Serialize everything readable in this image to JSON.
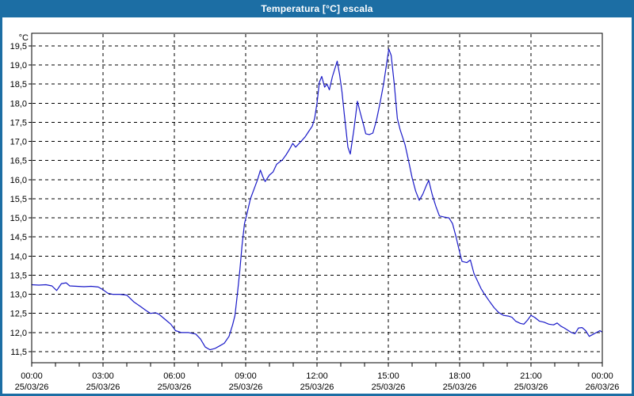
{
  "window": {
    "title": "Temperatura [°C] escala"
  },
  "colors": {
    "titlebar": "#1C6EA4",
    "window_border": "#1C6EA4",
    "plot_border": "#000000",
    "grid": "#000000",
    "line": "#1A1AC8",
    "text": "#000000",
    "background": "#FFFFFF"
  },
  "chart_data": {
    "type": "line",
    "title": "Temperatura [°C] escala",
    "y_unit_label": "°C",
    "ylabel_decimal_separator": ",",
    "grid": "dashed",
    "legend_position": "none",
    "xlim_hours": [
      0,
      24
    ],
    "ylim": [
      11.21,
      19.83
    ],
    "y_ticks": {
      "min": 11.5,
      "max": 19.5,
      "step": 0.5
    },
    "x_minor_tick_every_h": 1,
    "x_ticks": [
      {
        "h": 0,
        "time": "00:00",
        "date": "25/03/26"
      },
      {
        "h": 3,
        "time": "03:00",
        "date": "25/03/26"
      },
      {
        "h": 6,
        "time": "06:00",
        "date": "25/03/26"
      },
      {
        "h": 9,
        "time": "09:00",
        "date": "25/03/26"
      },
      {
        "h": 12,
        "time": "12:00",
        "date": "25/03/26"
      },
      {
        "h": 15,
        "time": "15:00",
        "date": "25/03/26"
      },
      {
        "h": 18,
        "time": "18:00",
        "date": "25/03/26"
      },
      {
        "h": 21,
        "time": "21:00",
        "date": "25/03/26"
      },
      {
        "h": 24,
        "time": "00:00",
        "date": "26/03/26"
      }
    ],
    "series": [
      {
        "name": "Temperatura",
        "color": "#1A1AC8",
        "points_time_h_temp_c": [
          [
            0.0,
            13.25
          ],
          [
            0.3,
            13.24
          ],
          [
            0.6,
            13.25
          ],
          [
            0.85,
            13.22
          ],
          [
            1.05,
            13.1
          ],
          [
            1.25,
            13.28
          ],
          [
            1.45,
            13.3
          ],
          [
            1.6,
            13.22
          ],
          [
            1.9,
            13.21
          ],
          [
            2.2,
            13.2
          ],
          [
            2.5,
            13.21
          ],
          [
            2.8,
            13.19
          ],
          [
            3.0,
            13.12
          ],
          [
            3.2,
            13.03
          ],
          [
            3.4,
            13.0
          ],
          [
            3.7,
            13.0
          ],
          [
            4.0,
            12.98
          ],
          [
            4.3,
            12.8
          ],
          [
            4.6,
            12.67
          ],
          [
            4.8,
            12.58
          ],
          [
            5.0,
            12.5
          ],
          [
            5.2,
            12.52
          ],
          [
            5.35,
            12.48
          ],
          [
            5.6,
            12.35
          ],
          [
            5.85,
            12.22
          ],
          [
            6.05,
            12.05
          ],
          [
            6.3,
            12.0
          ],
          [
            6.6,
            12.0
          ],
          [
            6.9,
            11.96
          ],
          [
            7.1,
            11.83
          ],
          [
            7.3,
            11.62
          ],
          [
            7.5,
            11.55
          ],
          [
            7.7,
            11.58
          ],
          [
            7.9,
            11.65
          ],
          [
            8.1,
            11.72
          ],
          [
            8.3,
            11.9
          ],
          [
            8.45,
            12.2
          ],
          [
            8.55,
            12.45
          ],
          [
            8.65,
            13.0
          ],
          [
            8.75,
            13.6
          ],
          [
            8.85,
            14.3
          ],
          [
            8.95,
            14.85
          ],
          [
            9.05,
            15.1
          ],
          [
            9.2,
            15.5
          ],
          [
            9.35,
            15.75
          ],
          [
            9.5,
            16.0
          ],
          [
            9.62,
            16.25
          ],
          [
            9.72,
            16.08
          ],
          [
            9.82,
            15.95
          ],
          [
            10.0,
            16.12
          ],
          [
            10.15,
            16.2
          ],
          [
            10.3,
            16.4
          ],
          [
            10.55,
            16.52
          ],
          [
            10.7,
            16.65
          ],
          [
            10.85,
            16.8
          ],
          [
            10.98,
            16.95
          ],
          [
            11.1,
            16.85
          ],
          [
            11.3,
            16.98
          ],
          [
            11.5,
            17.12
          ],
          [
            11.65,
            17.26
          ],
          [
            11.8,
            17.4
          ],
          [
            11.9,
            17.6
          ],
          [
            12.0,
            18.0
          ],
          [
            12.1,
            18.55
          ],
          [
            12.2,
            18.7
          ],
          [
            12.32,
            18.42
          ],
          [
            12.42,
            18.5
          ],
          [
            12.52,
            18.35
          ],
          [
            12.65,
            18.7
          ],
          [
            12.85,
            19.1
          ],
          [
            12.95,
            18.75
          ],
          [
            13.05,
            18.3
          ],
          [
            13.15,
            17.7
          ],
          [
            13.3,
            16.85
          ],
          [
            13.4,
            16.67
          ],
          [
            13.55,
            17.3
          ],
          [
            13.7,
            18.05
          ],
          [
            13.82,
            17.75
          ],
          [
            13.95,
            17.45
          ],
          [
            14.05,
            17.2
          ],
          [
            14.2,
            17.18
          ],
          [
            14.35,
            17.22
          ],
          [
            14.5,
            17.55
          ],
          [
            14.65,
            18.0
          ],
          [
            14.8,
            18.5
          ],
          [
            14.92,
            19.0
          ],
          [
            15.02,
            19.42
          ],
          [
            15.12,
            19.25
          ],
          [
            15.25,
            18.5
          ],
          [
            15.38,
            17.6
          ],
          [
            15.5,
            17.3
          ],
          [
            15.7,
            16.92
          ],
          [
            15.85,
            16.5
          ],
          [
            16.0,
            16.05
          ],
          [
            16.15,
            15.7
          ],
          [
            16.3,
            15.46
          ],
          [
            16.45,
            15.62
          ],
          [
            16.6,
            15.85
          ],
          [
            16.7,
            15.98
          ],
          [
            16.85,
            15.6
          ],
          [
            17.0,
            15.3
          ],
          [
            17.15,
            15.05
          ],
          [
            17.35,
            15.02
          ],
          [
            17.55,
            15.0
          ],
          [
            17.7,
            14.85
          ],
          [
            17.85,
            14.5
          ],
          [
            18.0,
            14.1
          ],
          [
            18.1,
            13.86
          ],
          [
            18.3,
            13.83
          ],
          [
            18.45,
            13.9
          ],
          [
            18.6,
            13.55
          ],
          [
            18.75,
            13.35
          ],
          [
            18.9,
            13.15
          ],
          [
            19.05,
            13.0
          ],
          [
            19.25,
            12.82
          ],
          [
            19.45,
            12.65
          ],
          [
            19.65,
            12.52
          ],
          [
            19.85,
            12.45
          ],
          [
            20.05,
            12.43
          ],
          [
            20.2,
            12.4
          ],
          [
            20.35,
            12.3
          ],
          [
            20.55,
            12.24
          ],
          [
            20.7,
            12.22
          ],
          [
            20.85,
            12.32
          ],
          [
            21.0,
            12.45
          ],
          [
            21.15,
            12.4
          ],
          [
            21.35,
            12.3
          ],
          [
            21.55,
            12.27
          ],
          [
            21.75,
            12.22
          ],
          [
            21.95,
            12.2
          ],
          [
            22.1,
            12.25
          ],
          [
            22.25,
            12.17
          ],
          [
            22.4,
            12.12
          ],
          [
            22.55,
            12.06
          ],
          [
            22.7,
            12.0
          ],
          [
            22.85,
            11.97
          ],
          [
            23.0,
            12.12
          ],
          [
            23.15,
            12.13
          ],
          [
            23.3,
            12.05
          ],
          [
            23.45,
            11.9
          ],
          [
            23.6,
            11.95
          ],
          [
            23.75,
            12.0
          ],
          [
            23.9,
            12.05
          ],
          [
            23.97,
            12.02
          ]
        ]
      }
    ]
  }
}
